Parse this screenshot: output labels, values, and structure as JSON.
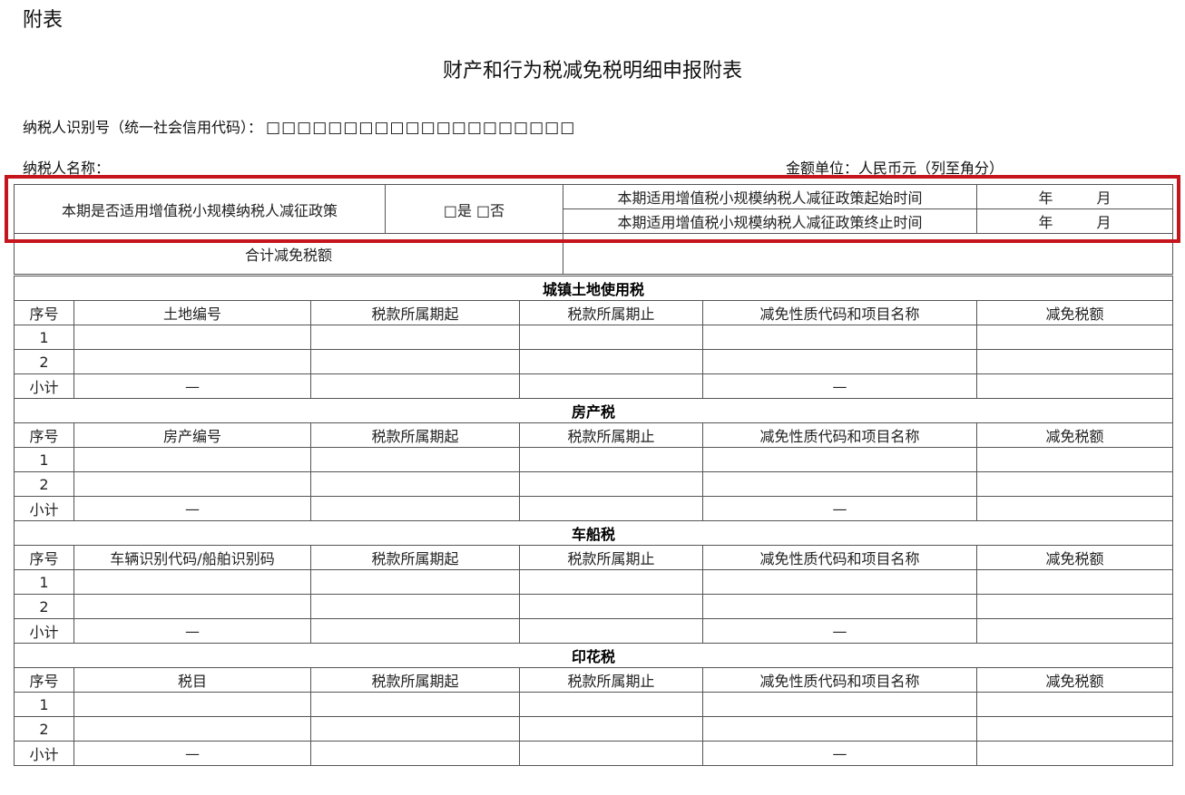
{
  "header_label": "附表",
  "title": "财产和行为税减免税明细申报附表",
  "taxpayer_id_label": "纳税人识别号（统一社会信用代码）：",
  "taxpayer_id_boxes": "□□□□□□□□□□□□□□□□□□□□",
  "taxpayer_name_label": "纳税人名称：",
  "amount_unit": "金额单位：人民币元（列至角分）",
  "policy": {
    "question": "本期是否适用增值税小规模纳税人减征政策",
    "options": "□是 □否",
    "start_label": "本期适用增值税小规模纳税人减征政策起始时间",
    "end_label": "本期适用增值税小规模纳税人减征政策终止时间",
    "year_month": "年　　　月",
    "total_label": "合计减免税额"
  },
  "highlight_color": "#c4161c",
  "sections": [
    {
      "name": "城镇土地使用税",
      "columns": [
        "序号",
        "土地编号",
        "税款所属期起",
        "税款所属期止",
        "减免性质代码和项目名称",
        "减免税额"
      ]
    },
    {
      "name": "房产税",
      "columns": [
        "序号",
        "房产编号",
        "税款所属期起",
        "税款所属期止",
        "减免性质代码和项目名称",
        "减免税额"
      ]
    },
    {
      "name": "车船税",
      "columns": [
        "序号",
        "车辆识别代码/船舶识别码",
        "税款所属期起",
        "税款所属期止",
        "减免性质代码和项目名称",
        "减免税额"
      ]
    },
    {
      "name": "印花税",
      "columns": [
        "序号",
        "税目",
        "税款所属期起",
        "税款所属期止",
        "减免性质代码和项目名称",
        "减免税额"
      ]
    }
  ],
  "rows": [
    "1",
    "2"
  ],
  "subtotal_label": "小计",
  "dash": "—"
}
